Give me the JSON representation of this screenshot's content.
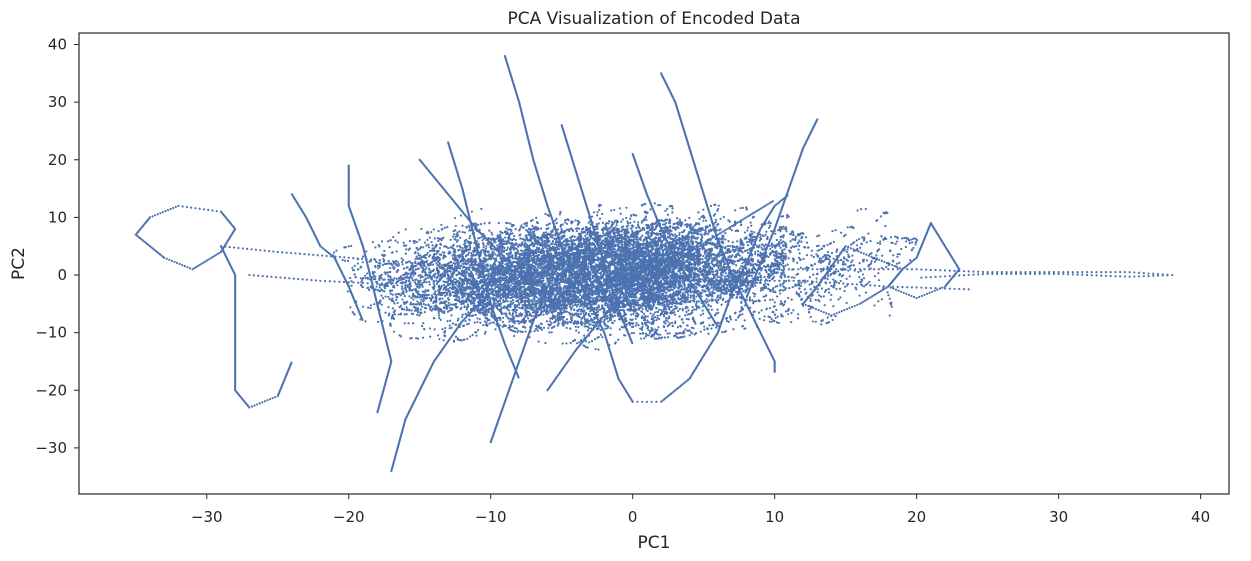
{
  "chart_data": {
    "type": "scatter",
    "title": "PCA Visualization of Encoded Data",
    "xlabel": "PC1",
    "ylabel": "PC2",
    "xlim": [
      -39,
      42
    ],
    "ylim": [
      -38,
      42
    ],
    "xticks": [
      -30,
      -20,
      -10,
      0,
      10,
      20,
      30,
      40
    ],
    "yticks": [
      -30,
      -20,
      -10,
      0,
      10,
      20,
      30,
      40
    ],
    "xtick_labels": [
      "−30",
      "−20",
      "−10",
      "0",
      "10",
      "20",
      "30",
      "40"
    ],
    "ytick_labels": [
      "−30",
      "−20",
      "−10",
      "0",
      "10",
      "20",
      "30",
      "40"
    ],
    "grid": false,
    "legend": null,
    "marker_color": "#4c72b0",
    "point_count_note_free": true,
    "series": [
      {
        "trajectories": [
          [
            [
              -35,
              7
            ],
            [
              -34,
              10
            ],
            [
              -32,
              12
            ],
            [
              -29,
              11
            ],
            [
              -28,
              8
            ],
            [
              -29,
              4
            ],
            [
              -31,
              1
            ],
            [
              -33,
              3
            ],
            [
              -35,
              7
            ]
          ],
          [
            [
              -29,
              5
            ],
            [
              -25,
              4
            ],
            [
              -20,
              3
            ],
            [
              -15,
              2
            ],
            [
              -10,
              1
            ],
            [
              -5,
              0
            ],
            [
              0,
              -1
            ],
            [
              5,
              0
            ],
            [
              10,
              1
            ],
            [
              15,
              1
            ],
            [
              20,
              1
            ],
            [
              25,
              0.5
            ],
            [
              30,
              0.5
            ],
            [
              35,
              0.5
            ],
            [
              38,
              0
            ],
            [
              35,
              -0.3
            ],
            [
              30,
              0.2
            ],
            [
              25,
              0.2
            ],
            [
              20,
              -0.5
            ]
          ],
          [
            [
              -29,
              5
            ],
            [
              -28,
              0
            ],
            [
              -28,
              -10
            ],
            [
              -28,
              -20
            ],
            [
              -27,
              -23
            ],
            [
              -25,
              -21
            ],
            [
              -24,
              -15
            ]
          ],
          [
            [
              -27,
              0
            ],
            [
              -22,
              -1
            ],
            [
              -18,
              -1.5
            ],
            [
              -12,
              -1
            ],
            [
              -6,
              -1
            ],
            [
              0,
              -1
            ],
            [
              6,
              -1
            ],
            [
              12,
              -1
            ],
            [
              18,
              -2
            ],
            [
              24,
              -2.5
            ]
          ],
          [
            [
              -24,
              14
            ],
            [
              -23,
              10
            ],
            [
              -22,
              5
            ],
            [
              -21,
              3
            ],
            [
              -20,
              -2
            ],
            [
              -19,
              -8
            ]
          ],
          [
            [
              -20,
              19
            ],
            [
              -20,
              12
            ],
            [
              -19,
              5
            ],
            [
              -18,
              -5
            ],
            [
              -17,
              -15
            ],
            [
              -18,
              -24
            ]
          ],
          [
            [
              -17,
              -34
            ],
            [
              -16,
              -25
            ],
            [
              -14,
              -15
            ],
            [
              -12,
              -8
            ],
            [
              -10,
              -3
            ]
          ],
          [
            [
              -9,
              38
            ],
            [
              -8,
              30
            ],
            [
              -7,
              20
            ],
            [
              -6,
              12
            ],
            [
              -5,
              5
            ],
            [
              -4,
              0
            ],
            [
              -3,
              -5
            ],
            [
              -2,
              -10
            ],
            [
              -1,
              -18
            ],
            [
              0,
              -22
            ],
            [
              2,
              -22
            ],
            [
              4,
              -18
            ],
            [
              6,
              -10
            ],
            [
              7,
              -3
            ],
            [
              8,
              2
            ],
            [
              9,
              8
            ],
            [
              10,
              12
            ],
            [
              11,
              14
            ]
          ],
          [
            [
              2,
              35
            ],
            [
              3,
              30
            ],
            [
              4,
              22
            ],
            [
              5,
              14
            ],
            [
              6,
              6
            ],
            [
              7,
              0
            ],
            [
              8,
              -5
            ],
            [
              9,
              -10
            ],
            [
              10,
              -15
            ],
            [
              10,
              -17
            ]
          ],
          [
            [
              13,
              27
            ],
            [
              12,
              22
            ],
            [
              11,
              15
            ],
            [
              10,
              8
            ],
            [
              9,
              2
            ],
            [
              8,
              -4
            ]
          ],
          [
            [
              -10,
              -29
            ],
            [
              -9,
              -22
            ],
            [
              -8,
              -15
            ],
            [
              -7,
              -8
            ],
            [
              -6,
              -2
            ]
          ],
          [
            [
              -13,
              23
            ],
            [
              -12,
              15
            ],
            [
              -11,
              5
            ],
            [
              -10,
              -5
            ],
            [
              -9,
              -12
            ],
            [
              -8,
              -18
            ]
          ],
          [
            [
              -5,
              26
            ],
            [
              -4,
              18
            ],
            [
              -3,
              10
            ],
            [
              -2,
              2
            ],
            [
              -1,
              -6
            ],
            [
              0,
              -12
            ]
          ],
          [
            [
              21,
              9
            ],
            [
              22,
              5
            ],
            [
              23,
              1
            ],
            [
              22,
              -2
            ],
            [
              20,
              -4
            ],
            [
              18,
              -2
            ],
            [
              19,
              1
            ],
            [
              20,
              3
            ],
            [
              21,
              9
            ]
          ],
          [
            [
              15,
              5
            ],
            [
              17,
              3
            ],
            [
              19,
              1
            ],
            [
              18,
              -2
            ],
            [
              16,
              -5
            ],
            [
              14,
              -7
            ],
            [
              12,
              -5
            ],
            [
              13,
              -2
            ],
            [
              15,
              5
            ]
          ],
          [
            [
              -15,
              20
            ],
            [
              -13,
              14
            ],
            [
              -11,
              8
            ],
            [
              -9,
              3
            ],
            [
              -7,
              -2
            ],
            [
              -5,
              -6
            ],
            [
              -3,
              -8
            ]
          ],
          [
            [
              -6,
              -20
            ],
            [
              -4,
              -13
            ],
            [
              -2,
              -7
            ],
            [
              0,
              -3
            ],
            [
              2,
              1
            ],
            [
              4,
              4
            ],
            [
              6,
              7
            ],
            [
              8,
              10
            ],
            [
              10,
              13
            ]
          ],
          [
            [
              0,
              21
            ],
            [
              1,
              14
            ],
            [
              2,
              8
            ],
            [
              3,
              3
            ],
            [
              4,
              -1
            ],
            [
              5,
              -5
            ],
            [
              6,
              -9
            ]
          ]
        ]
      }
    ]
  }
}
